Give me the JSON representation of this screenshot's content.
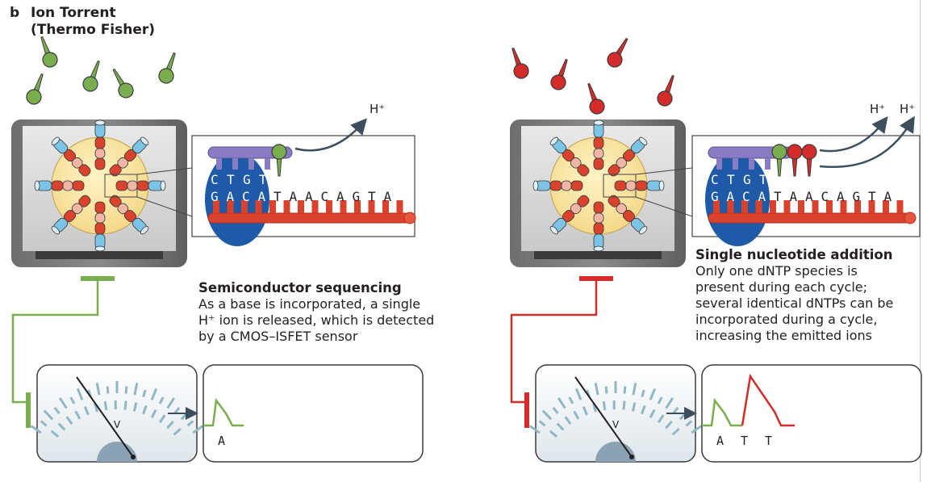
{
  "panel_letter": "b",
  "title_line1": "Ion Torrent",
  "title_line2": "(Thermo Fisher)",
  "left": {
    "caption_title": "Semiconductor sequencing",
    "caption_lines": [
      "As a base is incorporated, a single",
      "H⁺ ion is released, which is detected",
      "by a CMOS–ISFET sensor"
    ],
    "template_top": [
      "C",
      "T",
      "G",
      "T"
    ],
    "template_bottom": [
      "G",
      "A",
      "C",
      "A",
      "T",
      "A",
      "A",
      "C",
      "A",
      "G",
      "T",
      "A"
    ],
    "proton_label": "H⁺",
    "meter_unit": "V",
    "trace_bases": [
      "A"
    ],
    "color": "#7aad4e"
  },
  "right": {
    "caption_title": "Single nucleotide addition",
    "caption_lines": [
      "Only one dNTP species is",
      "present during each cycle;",
      "several identical dNTPs can be",
      "incorporated during a cycle,",
      "increasing the emitted ions"
    ],
    "template_top": [
      "C",
      "T",
      "G",
      "T"
    ],
    "template_bottom": [
      "G",
      "A",
      "C",
      "A",
      "T",
      "A",
      "A",
      "C",
      "A",
      "G",
      "T",
      "A"
    ],
    "proton_labels": [
      "H⁺",
      "H⁺"
    ],
    "meter_unit": "V",
    "trace_bases": [
      "A",
      "T",
      "T"
    ],
    "color": "#d42b2b"
  }
}
